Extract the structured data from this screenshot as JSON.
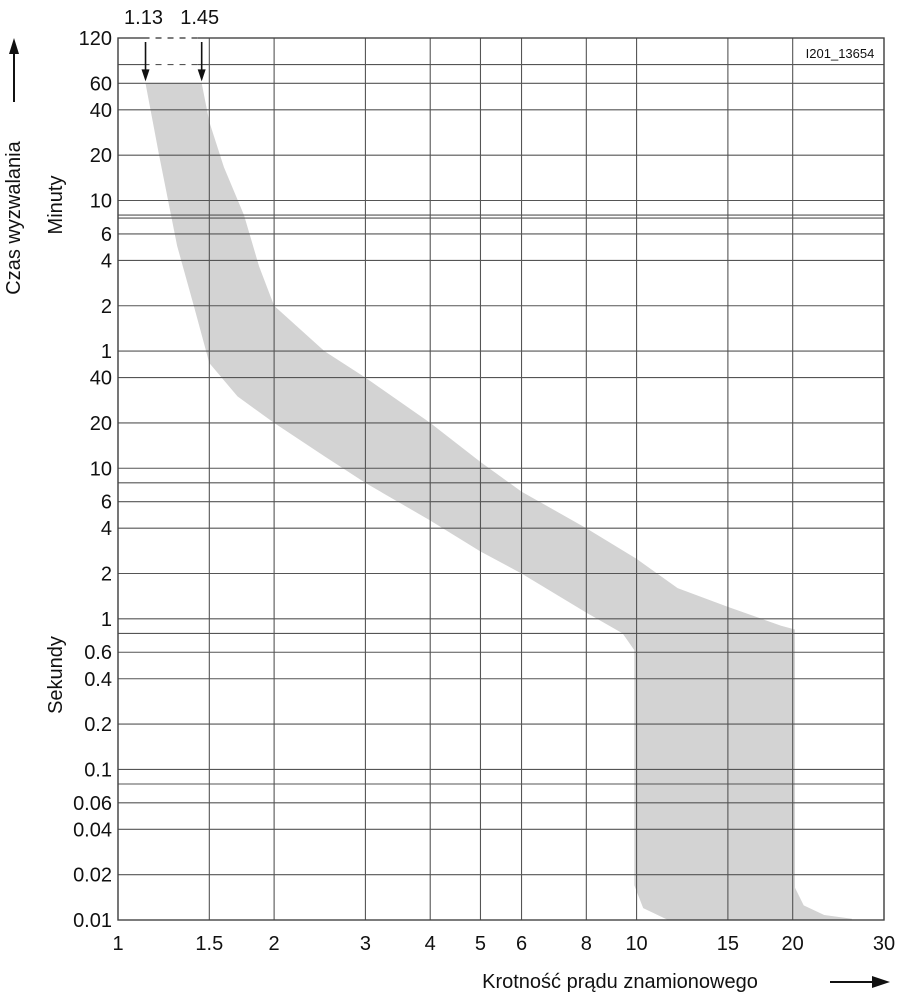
{
  "chart_data": {
    "type": "area",
    "title": "",
    "code": "I201_13654",
    "xlabel": "Krotność prądu znamionowego",
    "x_scale": "log",
    "xlim": [
      1,
      30
    ],
    "x_ticks": [
      1,
      1.5,
      2,
      3,
      4,
      5,
      6,
      8,
      10,
      15,
      20,
      30
    ],
    "x_tick_labels": [
      "1",
      "1.5",
      "2",
      "3",
      "4",
      "5",
      "6",
      "8",
      "10",
      "15",
      "20",
      "30"
    ],
    "ylabel": "Czas wyzwalania",
    "y_unit_minutes": "Minuty",
    "y_unit_seconds": "Sekundy",
    "y_scale": "log",
    "ylim_seconds": [
      0.01,
      7200
    ],
    "y_ticks": [
      {
        "seconds": 7200,
        "label": "120"
      },
      {
        "seconds": 3600,
        "label": "60"
      },
      {
        "seconds": 2400,
        "label": "40"
      },
      {
        "seconds": 1200,
        "label": "20"
      },
      {
        "seconds": 600,
        "label": "10"
      },
      {
        "seconds": 360,
        "label": "6"
      },
      {
        "seconds": 240,
        "label": "4"
      },
      {
        "seconds": 120,
        "label": "2"
      },
      {
        "seconds": 60,
        "label": "1"
      },
      {
        "seconds": 40,
        "label": "40"
      },
      {
        "seconds": 20,
        "label": "20"
      },
      {
        "seconds": 10,
        "label": "10"
      },
      {
        "seconds": 6,
        "label": "6"
      },
      {
        "seconds": 4,
        "label": "4"
      },
      {
        "seconds": 2,
        "label": "2"
      },
      {
        "seconds": 1,
        "label": "1"
      },
      {
        "seconds": 0.6,
        "label": "0.6"
      },
      {
        "seconds": 0.4,
        "label": "0.4"
      },
      {
        "seconds": 0.2,
        "label": "0.2"
      },
      {
        "seconds": 0.1,
        "label": "0.1"
      },
      {
        "seconds": 0.06,
        "label": "0.06"
      },
      {
        "seconds": 0.04,
        "label": "0.04"
      },
      {
        "seconds": 0.02,
        "label": "0.02"
      },
      {
        "seconds": 0.01,
        "label": "0.01"
      }
    ],
    "y_unlabeled_gridlines_seconds": [
      4800,
      480,
      480,
      8,
      0.8,
      0.08
    ],
    "markers": [
      {
        "label": "1.13",
        "x": 1.13
      },
      {
        "label": "1.45",
        "x": 1.45
      }
    ],
    "grid": true,
    "band_color": "#d3d3d3",
    "band": {
      "name": "Czas wyzwalania",
      "upper": [
        [
          1.45,
          3600
        ],
        [
          1.5,
          2000
        ],
        [
          1.6,
          1000
        ],
        [
          1.75,
          480
        ],
        [
          1.87,
          220
        ],
        [
          2,
          120
        ],
        [
          2.5,
          60
        ],
        [
          3,
          40
        ],
        [
          4,
          20
        ],
        [
          5,
          11
        ],
        [
          6,
          7
        ],
        [
          8,
          4
        ],
        [
          10,
          2.5
        ],
        [
          12,
          1.6
        ],
        [
          15,
          1.2
        ],
        [
          19,
          0.9
        ],
        [
          20.2,
          0.85
        ]
      ],
      "lower": [
        [
          1.13,
          3600
        ],
        [
          1.2,
          1200
        ],
        [
          1.3,
          300
        ],
        [
          1.4,
          120
        ],
        [
          1.5,
          50
        ],
        [
          1.7,
          30
        ],
        [
          2,
          20
        ],
        [
          2.5,
          12
        ],
        [
          3,
          8
        ],
        [
          4,
          4.5
        ],
        [
          5,
          2.8
        ],
        [
          6,
          2
        ],
        [
          8,
          1.1
        ],
        [
          9.4,
          0.8
        ],
        [
          9.9,
          0.62
        ],
        [
          9.9,
          0.017
        ],
        [
          10.3,
          0.012
        ],
        [
          11.5,
          0.01
        ],
        [
          20.2,
          0.01
        ]
      ],
      "tail": [
        [
          20.2,
          0.85
        ],
        [
          20.1,
          0.4
        ],
        [
          20,
          0.03
        ],
        [
          20.1,
          0.017
        ],
        [
          21,
          0.0125
        ],
        [
          23,
          0.0108
        ],
        [
          26,
          0.0102
        ],
        [
          26,
          0.01
        ],
        [
          20.2,
          0.01
        ]
      ]
    }
  }
}
